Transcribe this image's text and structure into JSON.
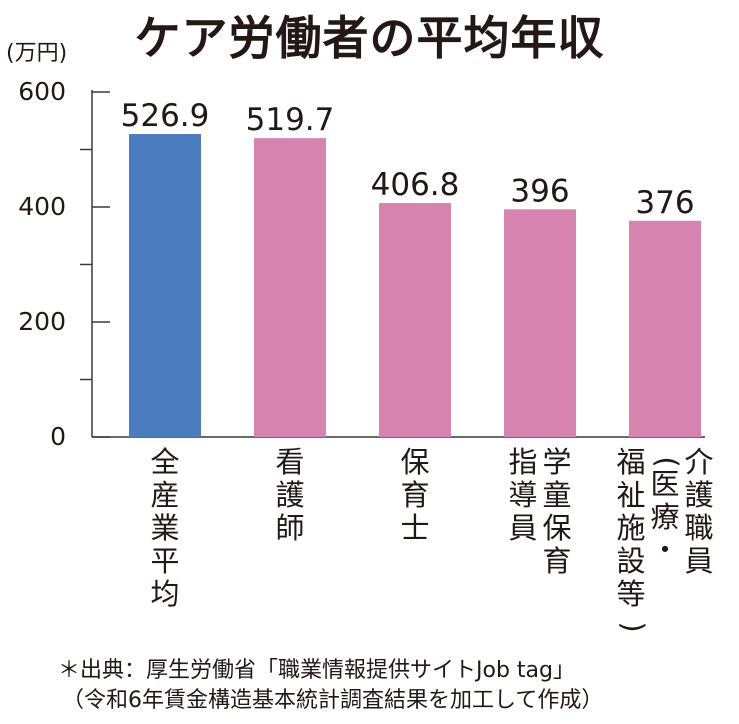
{
  "chart_data": {
    "type": "bar",
    "title": "ケア労働者の平均年収",
    "ylabel": "(万円)",
    "ylim": [
      0,
      600
    ],
    "yticks": [
      0,
      200,
      400,
      600
    ],
    "categories": [
      [
        "全",
        "産",
        "業",
        "平",
        "均"
      ],
      [
        "看",
        "護",
        "師"
      ],
      [
        "保",
        "育",
        "士"
      ],
      [
        "学",
        "童",
        "保",
        "育",
        "指",
        "導",
        "員"
      ],
      [
        "介",
        "護",
        "職",
        "員",
        "(医",
        "療・",
        "福",
        "祉",
        "施",
        "設",
        "等)"
      ]
    ],
    "category_columns": [
      [
        [
          "全",
          "産",
          "業",
          "平",
          "均"
        ]
      ],
      [
        [
          "看",
          "護",
          "師"
        ]
      ],
      [
        [
          "保",
          "育",
          "士"
        ]
      ],
      [
        [
          "学",
          "童",
          "保",
          "育"
        ],
        [
          "指",
          "導",
          "員"
        ]
      ],
      [
        [
          "介",
          "護",
          "職",
          "員"
        ],
        [
          "(",
          "医",
          "療",
          "・"
        ],
        [
          "福",
          "祉",
          "施",
          "設",
          "等",
          ")"
        ]
      ]
    ],
    "values": [
      526.9,
      519.7,
      406.8,
      396,
      376
    ],
    "value_labels": [
      "526.9",
      "519.7",
      "406.8",
      "396",
      "376"
    ],
    "bar_colors": [
      "#4b7cc0",
      "#d683b0",
      "#d683b0",
      "#d683b0",
      "#d683b0"
    ],
    "grid": false,
    "legend": "none"
  },
  "notes": {
    "source_line1": "＊出典：厚生労働省「職業情報提供サイトJob tag」",
    "source_line2": "（令和6年賃金構造基本統計調査結果を加工して作成）"
  }
}
